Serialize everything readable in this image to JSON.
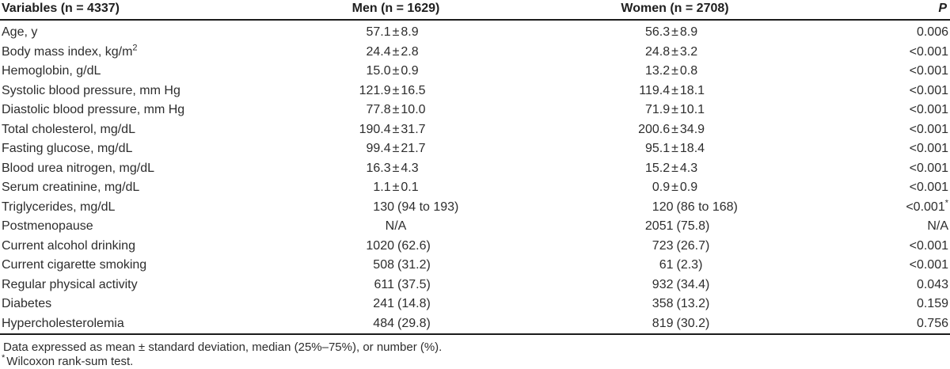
{
  "table": {
    "columns": [
      {
        "label": "Variables (n = 4337)"
      },
      {
        "label": "Men (n = 1629)"
      },
      {
        "label": "Women (n = 2708)"
      },
      {
        "label": "P"
      }
    ],
    "rows": [
      {
        "variable": "Age, y",
        "variable_sup": "",
        "men": "57.1±8.9",
        "women": "56.3±8.9",
        "p": "0.006",
        "p_sup": ""
      },
      {
        "variable": "Body mass index, kg/m",
        "variable_sup": "2",
        "men": "24.4±2.8",
        "women": "24.8±3.2",
        "p": "<0.001",
        "p_sup": ""
      },
      {
        "variable": "Hemoglobin, g/dL",
        "variable_sup": "",
        "men": "15.0±0.9",
        "women": "13.2±0.8",
        "p": "<0.001",
        "p_sup": ""
      },
      {
        "variable": "Systolic blood pressure, mm Hg",
        "variable_sup": "",
        "men": "121.9±16.5",
        "women": "119.4±18.1",
        "p": "<0.001",
        "p_sup": ""
      },
      {
        "variable": "Diastolic blood pressure, mm Hg",
        "variable_sup": "",
        "men": "77.8±10.0",
        "women": "71.9±10.1",
        "p": "<0.001",
        "p_sup": ""
      },
      {
        "variable": "Total cholesterol, mg/dL",
        "variable_sup": "",
        "men": "190.4±31.7",
        "women": "200.6±34.9",
        "p": "<0.001",
        "p_sup": ""
      },
      {
        "variable": "Fasting glucose, mg/dL",
        "variable_sup": "",
        "men": "99.4±21.7",
        "women": "95.1±18.4",
        "p": "<0.001",
        "p_sup": ""
      },
      {
        "variable": "Blood urea nitrogen, mg/dL",
        "variable_sup": "",
        "men": "16.3±4.3",
        "women": "15.2±4.3",
        "p": "<0.001",
        "p_sup": ""
      },
      {
        "variable": "Serum creatinine, mg/dL",
        "variable_sup": "",
        "men": "1.1±0.1",
        "women": "0.9±0.9",
        "p": "<0.001",
        "p_sup": ""
      },
      {
        "variable": "Triglycerides, mg/dL",
        "variable_sup": "",
        "men": "130 (94 to 193)",
        "women": "120 (86 to 168)",
        "p": "<0.001",
        "p_sup": "*"
      },
      {
        "variable": "Postmenopause",
        "variable_sup": "",
        "men": "N/A",
        "women": "2051 (75.8)",
        "p": "N/A",
        "p_sup": ""
      },
      {
        "variable": "Current alcohol drinking",
        "variable_sup": "",
        "men": "1020 (62.6)",
        "women": "723 (26.7)",
        "p": "<0.001",
        "p_sup": ""
      },
      {
        "variable": "Current cigarette smoking",
        "variable_sup": "",
        "men": "508 (31.2)",
        "women": "61 (2.3)",
        "p": "<0.001",
        "p_sup": ""
      },
      {
        "variable": "Regular physical activity",
        "variable_sup": "",
        "men": "611 (37.5)",
        "women": "932 (34.4)",
        "p": "0.043",
        "p_sup": ""
      },
      {
        "variable": "Diabetes",
        "variable_sup": "",
        "men": "241 (14.8)",
        "women": "358 (13.2)",
        "p": "0.159",
        "p_sup": ""
      },
      {
        "variable": "Hypercholesterolemia",
        "variable_sup": "",
        "men": "484 (29.8)",
        "women": "819 (30.2)",
        "p": "0.756",
        "p_sup": ""
      }
    ]
  },
  "footnotes": [
    {
      "sup": "",
      "text": "Data expressed as mean ± standard deviation, median (25%–75%), or number (%)."
    },
    {
      "sup": "*",
      "text": "Wilcoxon rank-sum test."
    }
  ],
  "colors": {
    "text": "#2d2d2d",
    "rule": "#1c1c1c",
    "background": "#ffffff"
  }
}
